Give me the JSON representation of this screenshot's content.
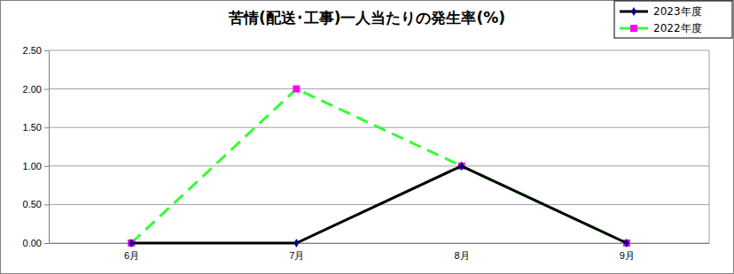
{
  "chart_data": {
    "type": "line",
    "title": "苦情(配送･工事)一人当たりの発生率(%)",
    "categories": [
      "6月",
      "7月",
      "8月",
      "9月"
    ],
    "series": [
      {
        "name": "2023年度",
        "color": "#000000",
        "marker": "diamond",
        "line_style": "solid",
        "values": [
          0,
          0,
          1,
          0
        ]
      },
      {
        "name": "2022年度",
        "color": "#33ff33",
        "marker": "square",
        "line_style": "dashed",
        "values": [
          0,
          2,
          1,
          0
        ]
      }
    ],
    "ylim": [
      0,
      2.5
    ],
    "yticks": [
      {
        "value": 0,
        "label": "0.00"
      },
      {
        "value": 0.5,
        "label": "0.50"
      },
      {
        "value": 1,
        "label": "1.00"
      },
      {
        "value": 1.5,
        "label": "1.50"
      },
      {
        "value": 2,
        "label": "2.00"
      },
      {
        "value": 2.5,
        "label": "2.50"
      }
    ],
    "grid": true,
    "legend": "top-right"
  }
}
